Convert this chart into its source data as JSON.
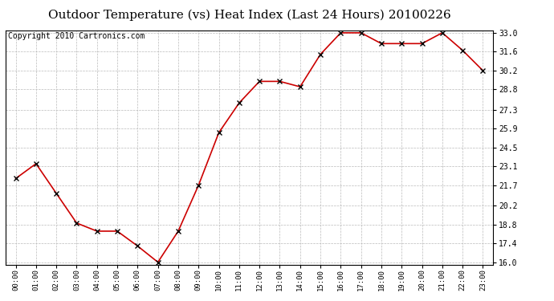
{
  "title": "Outdoor Temperature (vs) Heat Index (Last 24 Hours) 20100226",
  "copyright": "Copyright 2010 Cartronics.com",
  "x_labels": [
    "00:00",
    "01:00",
    "02:00",
    "03:00",
    "04:00",
    "05:00",
    "06:00",
    "07:00",
    "08:00",
    "09:00",
    "10:00",
    "11:00",
    "12:00",
    "13:00",
    "14:00",
    "15:00",
    "16:00",
    "17:00",
    "18:00",
    "19:00",
    "20:00",
    "21:00",
    "22:00",
    "23:00"
  ],
  "y_values": [
    22.2,
    23.3,
    21.1,
    18.9,
    18.3,
    18.3,
    17.2,
    16.0,
    18.3,
    21.7,
    25.6,
    27.8,
    29.4,
    29.4,
    29.0,
    31.4,
    33.0,
    33.0,
    32.2,
    32.2,
    32.2,
    33.0,
    31.7,
    30.2
  ],
  "y_ticks": [
    16.0,
    17.4,
    18.8,
    20.2,
    21.7,
    23.1,
    24.5,
    25.9,
    27.3,
    28.8,
    30.2,
    31.6,
    33.0
  ],
  "y_min": 16.0,
  "y_max": 33.0,
  "line_color": "#cc0000",
  "marker": "x",
  "marker_size": 4,
  "marker_color": "#000000",
  "bg_color": "#ffffff",
  "grid_color": "#bbbbbb",
  "title_fontsize": 11,
  "copyright_fontsize": 7
}
